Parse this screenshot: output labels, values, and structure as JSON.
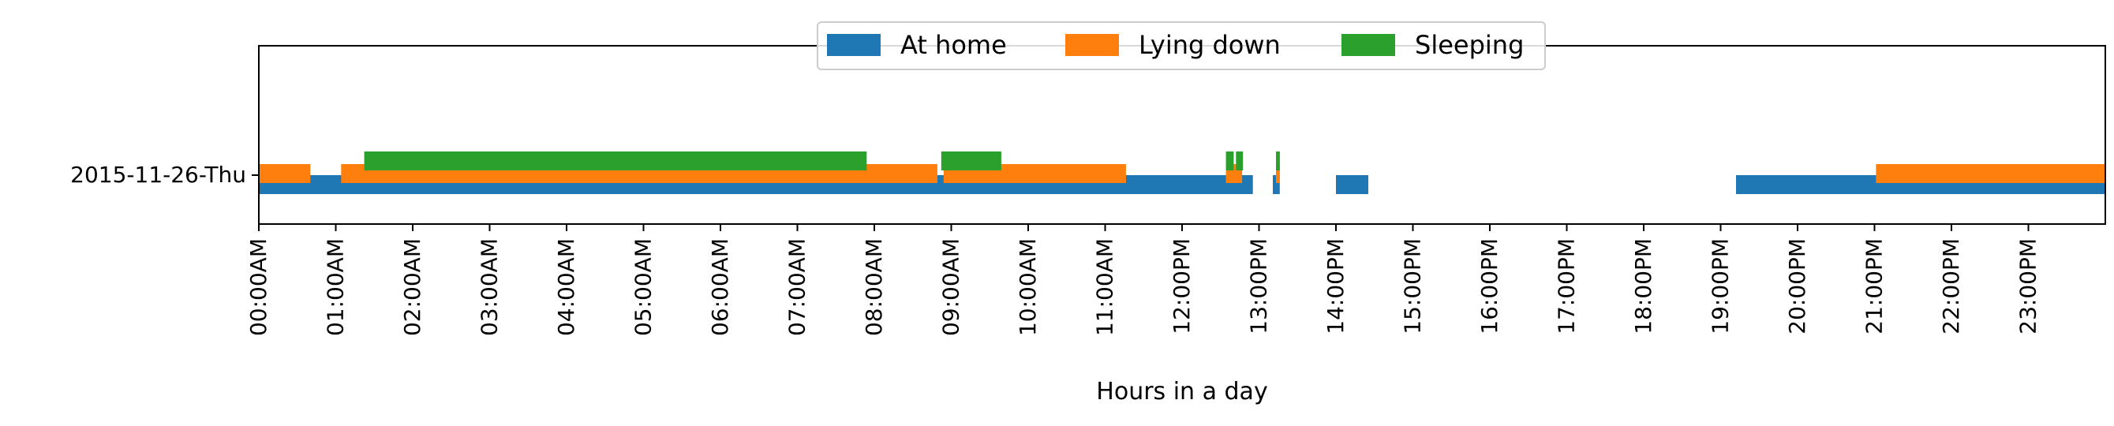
{
  "chart_data": {
    "type": "timeline",
    "title": "",
    "xlabel": "Hours in a day",
    "ylabel": "",
    "xlim": [
      0,
      24
    ],
    "x_ticks": [
      {
        "value": 0,
        "label": "00:00AM"
      },
      {
        "value": 1,
        "label": "01:00AM"
      },
      {
        "value": 2,
        "label": "02:00AM"
      },
      {
        "value": 3,
        "label": "03:00AM"
      },
      {
        "value": 4,
        "label": "04:00AM"
      },
      {
        "value": 5,
        "label": "05:00AM"
      },
      {
        "value": 6,
        "label": "06:00AM"
      },
      {
        "value": 7,
        "label": "07:00AM"
      },
      {
        "value": 8,
        "label": "08:00AM"
      },
      {
        "value": 9,
        "label": "09:00AM"
      },
      {
        "value": 10,
        "label": "10:00AM"
      },
      {
        "value": 11,
        "label": "11:00AM"
      },
      {
        "value": 12,
        "label": "12:00PM"
      },
      {
        "value": 13,
        "label": "13:00PM"
      },
      {
        "value": 14,
        "label": "14:00PM"
      },
      {
        "value": 15,
        "label": "15:00PM"
      },
      {
        "value": 16,
        "label": "16:00PM"
      },
      {
        "value": 17,
        "label": "17:00PM"
      },
      {
        "value": 18,
        "label": "18:00PM"
      },
      {
        "value": 19,
        "label": "19:00PM"
      },
      {
        "value": 20,
        "label": "20:00PM"
      },
      {
        "value": 21,
        "label": "21:00PM"
      },
      {
        "value": 22,
        "label": "22:00PM"
      },
      {
        "value": 23,
        "label": "23:00PM"
      }
    ],
    "categories": [
      "2015-11-26-Thu"
    ],
    "legend_position": "top-center",
    "grid": false,
    "series": [
      {
        "name": "At home",
        "color": "#1f77b4",
        "intervals": [
          [
            0.0,
            12.92
          ],
          [
            13.18,
            13.27
          ],
          [
            14.0,
            14.42
          ],
          [
            19.2,
            24.0
          ]
        ]
      },
      {
        "name": "Lying down",
        "color": "#ff7f0e",
        "intervals": [
          [
            0.0,
            0.67
          ],
          [
            1.07,
            8.82
          ],
          [
            8.9,
            11.27
          ],
          [
            12.57,
            12.78
          ],
          [
            13.22,
            13.27
          ],
          [
            21.02,
            24.0
          ]
        ]
      },
      {
        "name": "Sleeping",
        "color": "#2ca02c",
        "intervals": [
          [
            1.37,
            7.9
          ],
          [
            8.87,
            9.65
          ],
          [
            12.57,
            12.67
          ],
          [
            12.7,
            12.79
          ],
          [
            13.22,
            13.27
          ]
        ]
      }
    ]
  }
}
